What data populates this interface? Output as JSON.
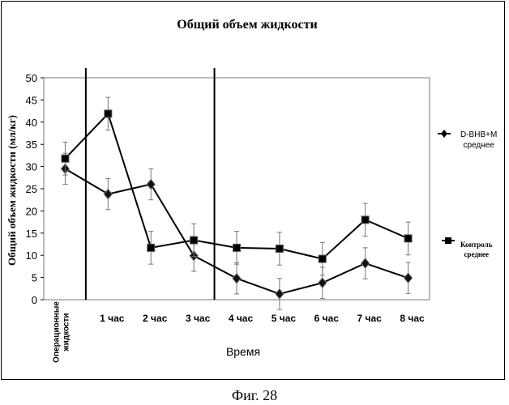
{
  "chart_data": {
    "type": "line",
    "title": "Общий объем жидкости",
    "xlabel": "Время",
    "ylabel": "Общий объем жидкости (мл/кг)",
    "ylim": [
      0,
      50
    ],
    "yticks": [
      0,
      5,
      10,
      15,
      20,
      25,
      30,
      35,
      40,
      45,
      50
    ],
    "categories": [
      "Операционные жидкости",
      "1 час",
      "2 час",
      "3 час",
      "4 час",
      "5 час",
      "6 час",
      "7 час",
      "8 час"
    ],
    "first_category_lines": [
      "Операционные",
      "жидкости"
    ],
    "vertical_markers_after": [
      "Операционные жидкости",
      "3 час"
    ],
    "grid": false,
    "legend_placement": "right",
    "series": [
      {
        "name": "D-BHB+M среднее",
        "legend_lines": [
          "D-BHB+M",
          "среднее"
        ],
        "marker": "diamond",
        "values": [
          29.5,
          23.8,
          26.0,
          9.9,
          4.8,
          1.3,
          3.8,
          8.2,
          4.9
        ],
        "error": [
          3.5,
          3.5,
          3.5,
          3.5,
          3.5,
          3.5,
          3.5,
          3.5,
          3.5
        ]
      },
      {
        "name": "Контроль среднее",
        "legend_lines": [
          "Контроль",
          "среднее"
        ],
        "marker": "square",
        "values": [
          31.8,
          41.9,
          11.7,
          13.4,
          11.7,
          11.5,
          9.2,
          18.0,
          13.8
        ],
        "error": [
          3.7,
          3.7,
          3.7,
          3.7,
          3.7,
          3.7,
          3.7,
          3.7,
          3.7
        ]
      }
    ]
  },
  "caption": "Фиг. 28"
}
